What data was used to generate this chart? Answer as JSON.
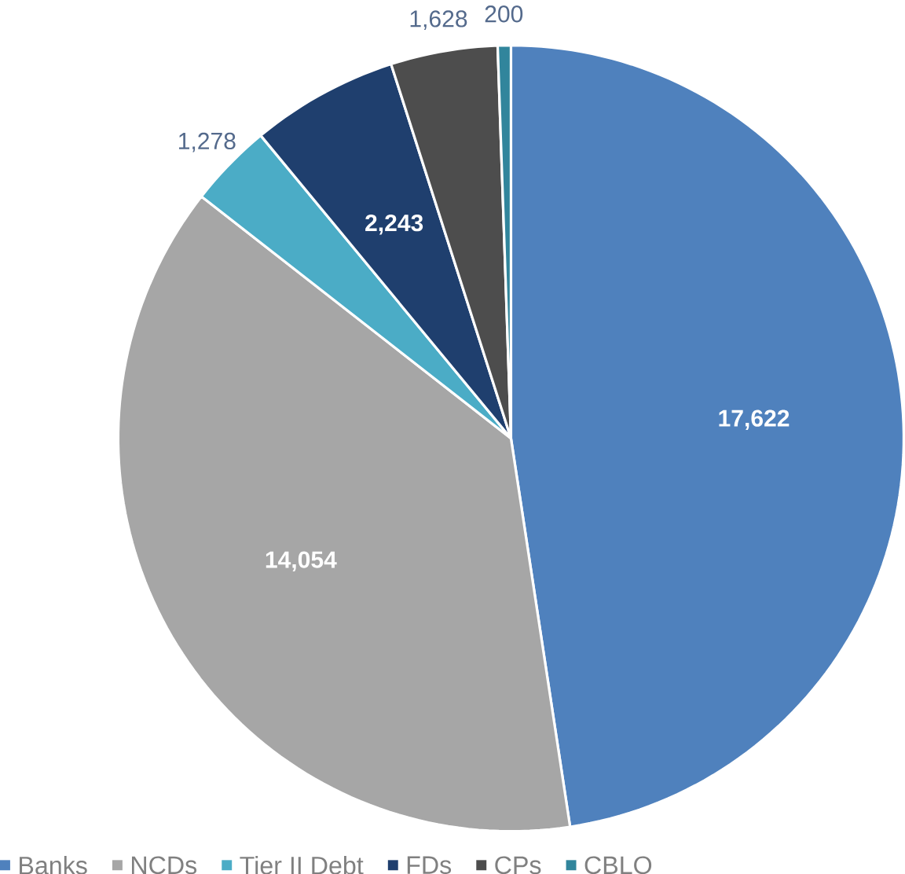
{
  "chart_data": {
    "type": "pie",
    "categories": [
      "Banks",
      "NCDs",
      "Tier II Debt",
      "FDs",
      "CPs",
      "CBLO"
    ],
    "values": [
      17622,
      14054,
      1278,
      2243,
      1628,
      200
    ],
    "colors": [
      "#4f81bd",
      "#a6a6a6",
      "#4bacc6",
      "#1f3f6e",
      "#4d4d4d",
      "#31859c"
    ],
    "value_labels": [
      "17,622",
      "14,054",
      "1,278",
      "2,243",
      "1,628",
      "200"
    ],
    "legend": "bottom"
  }
}
